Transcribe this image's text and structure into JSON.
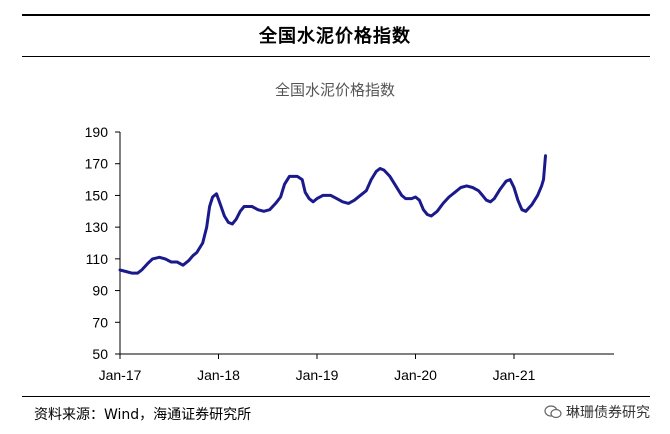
{
  "header": {
    "title": "全国水泥价格指数"
  },
  "footer": {
    "source": "资料来源：Wind，海通证券研究所",
    "watermark": "琳珊债券研究"
  },
  "icons": {
    "watermark_icon": "wechat-icon"
  },
  "colors": {
    "line": "#1a1a8c",
    "title": "#555555"
  },
  "chart_data": {
    "type": "line",
    "title": "全国水泥价格指数",
    "xlabel": "",
    "ylabel": "",
    "ylim": [
      50,
      190
    ],
    "yticks": [
      50,
      70,
      90,
      110,
      130,
      150,
      170,
      190
    ],
    "xticks": [
      "Jan-17",
      "Jan-18",
      "Jan-19",
      "Jan-20",
      "Jan-21"
    ],
    "xlim": [
      0,
      4.72
    ],
    "grid": false,
    "legend": "none",
    "series": [
      {
        "values": [
          [
            0.0,
            103
          ],
          [
            0.06,
            102
          ],
          [
            0.12,
            101
          ],
          [
            0.18,
            101
          ],
          [
            0.22,
            103
          ],
          [
            0.28,
            107
          ],
          [
            0.33,
            110
          ],
          [
            0.4,
            111
          ],
          [
            0.46,
            110
          ],
          [
            0.52,
            108
          ],
          [
            0.58,
            108
          ],
          [
            0.64,
            106
          ],
          [
            0.7,
            109
          ],
          [
            0.74,
            112
          ],
          [
            0.78,
            114
          ],
          [
            0.84,
            120
          ],
          [
            0.88,
            130
          ],
          [
            0.91,
            143
          ],
          [
            0.94,
            149
          ],
          [
            0.98,
            151
          ],
          [
            1.02,
            144
          ],
          [
            1.06,
            137
          ],
          [
            1.1,
            133
          ],
          [
            1.14,
            132
          ],
          [
            1.18,
            135
          ],
          [
            1.22,
            140
          ],
          [
            1.26,
            143
          ],
          [
            1.34,
            143
          ],
          [
            1.4,
            141
          ],
          [
            1.46,
            140
          ],
          [
            1.52,
            141
          ],
          [
            1.58,
            145
          ],
          [
            1.63,
            149
          ],
          [
            1.67,
            157
          ],
          [
            1.72,
            162
          ],
          [
            1.8,
            162
          ],
          [
            1.85,
            160
          ],
          [
            1.88,
            152
          ],
          [
            1.92,
            148
          ],
          [
            1.96,
            146
          ],
          [
            2.0,
            148
          ],
          [
            2.06,
            150
          ],
          [
            2.14,
            150
          ],
          [
            2.2,
            148
          ],
          [
            2.26,
            146
          ],
          [
            2.32,
            145
          ],
          [
            2.38,
            147
          ],
          [
            2.44,
            150
          ],
          [
            2.5,
            153
          ],
          [
            2.55,
            160
          ],
          [
            2.6,
            165
          ],
          [
            2.64,
            167
          ],
          [
            2.68,
            166
          ],
          [
            2.74,
            162
          ],
          [
            2.8,
            156
          ],
          [
            2.86,
            150
          ],
          [
            2.9,
            148
          ],
          [
            2.96,
            148
          ],
          [
            3.0,
            149
          ],
          [
            3.04,
            147
          ],
          [
            3.08,
            141
          ],
          [
            3.12,
            138
          ],
          [
            3.16,
            137
          ],
          [
            3.22,
            140
          ],
          [
            3.28,
            145
          ],
          [
            3.34,
            149
          ],
          [
            3.4,
            152
          ],
          [
            3.46,
            155
          ],
          [
            3.52,
            156
          ],
          [
            3.58,
            155
          ],
          [
            3.64,
            153
          ],
          [
            3.68,
            150
          ],
          [
            3.72,
            147
          ],
          [
            3.76,
            146
          ],
          [
            3.8,
            148
          ],
          [
            3.86,
            154
          ],
          [
            3.92,
            159
          ],
          [
            3.96,
            160
          ],
          [
            4.0,
            155
          ],
          [
            4.04,
            147
          ],
          [
            4.08,
            141
          ],
          [
            4.12,
            140
          ],
          [
            4.18,
            144
          ],
          [
            4.24,
            150
          ],
          [
            4.28,
            156
          ],
          [
            4.3,
            160
          ],
          [
            4.32,
            175
          ]
        ]
      }
    ]
  }
}
